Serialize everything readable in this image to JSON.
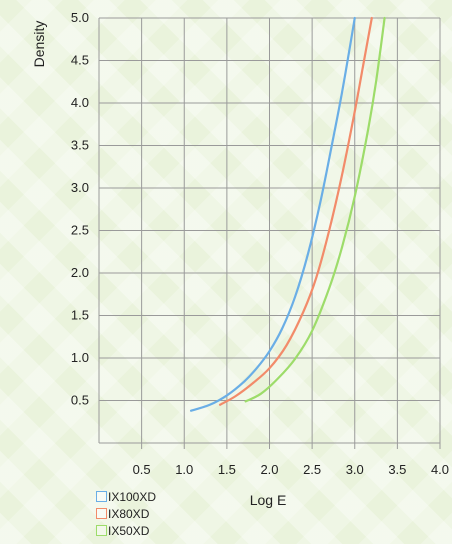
{
  "chart_data": {
    "type": "line",
    "title": "",
    "xlabel": "Log E",
    "ylabel": "Density",
    "xlim": [
      0,
      4.0
    ],
    "ylim": [
      0,
      5.0
    ],
    "x_ticks": [
      "0.5",
      "1.0",
      "1.5",
      "2.0",
      "2.5",
      "3.0",
      "3.5",
      "4.0"
    ],
    "y_ticks": [
      "0.5",
      "1.0",
      "1.5",
      "2.0",
      "2.5",
      "3.0",
      "3.5",
      "4.0",
      "4.5",
      "5.0"
    ],
    "grid": true,
    "legend_position": "bottom-left",
    "series": [
      {
        "name": "IX100XD",
        "color": "#6aaee6",
        "x": [
          1.08,
          1.3,
          1.5,
          1.7,
          1.85,
          2.0,
          2.15,
          2.3,
          2.45,
          2.6,
          2.75,
          2.85,
          2.95,
          3.0
        ],
        "y": [
          0.38,
          0.45,
          0.56,
          0.72,
          0.88,
          1.08,
          1.35,
          1.72,
          2.22,
          2.85,
          3.6,
          4.12,
          4.7,
          5.0
        ]
      },
      {
        "name": "IX80XD",
        "color": "#f28b6a",
        "x": [
          1.42,
          1.6,
          1.8,
          2.0,
          2.2,
          2.4,
          2.55,
          2.7,
          2.85,
          3.0,
          3.1,
          3.2
        ],
        "y": [
          0.45,
          0.55,
          0.7,
          0.88,
          1.15,
          1.55,
          1.95,
          2.5,
          3.15,
          3.9,
          4.45,
          5.0
        ]
      },
      {
        "name": "IX50XD",
        "color": "#9ddc6a",
        "x": [
          1.72,
          1.9,
          2.1,
          2.3,
          2.5,
          2.7,
          2.85,
          3.0,
          3.15,
          3.25,
          3.35
        ],
        "y": [
          0.49,
          0.58,
          0.76,
          0.99,
          1.32,
          1.82,
          2.3,
          2.9,
          3.65,
          4.25,
          5.0
        ]
      }
    ]
  }
}
